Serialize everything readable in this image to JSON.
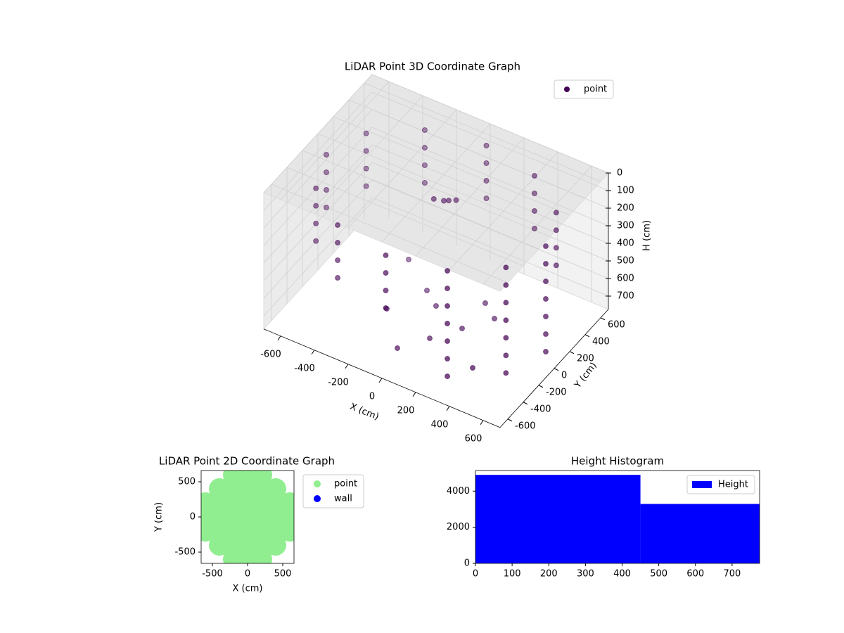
{
  "chart_data": [
    {
      "type": "scatter3d",
      "title": "LiDAR Point 3D Coordinate Graph",
      "xlabel": "X (cm)",
      "ylabel": "Y (cm)",
      "zlabel": "H (cm)",
      "xlim": [
        -700,
        700
      ],
      "ylim": [
        -700,
        700
      ],
      "zlim": [
        775,
        0
      ],
      "xticks": [
        -600,
        -400,
        -200,
        0,
        200,
        400,
        600
      ],
      "yticks": [
        -600,
        -400,
        -200,
        0,
        200,
        400,
        600
      ],
      "zticks": [
        0,
        100,
        200,
        300,
        400,
        500,
        600,
        700
      ],
      "grid": true,
      "legend": "upper right",
      "series": [
        {
          "name": "point",
          "color": "#440154",
          "x": [
            650,
            650,
            650,
            650,
            563,
            563,
            563,
            563,
            325,
            325,
            325,
            325,
            0,
            0,
            0,
            0,
            -325,
            -325,
            -325,
            -325,
            -563,
            -563,
            -563,
            -563,
            -650,
            -650,
            -650,
            -650,
            -563,
            -563,
            -563,
            -563,
            -325,
            -325,
            -325,
            -325,
            0,
            0,
            0,
            0,
            325,
            325,
            325,
            325,
            563,
            563,
            563,
            563,
            325,
            325,
            325,
            563,
            563,
            563,
            650,
            650,
            650,
            0,
            200,
            -100,
            300,
            100,
            -200,
            400,
            -300,
            200,
            0,
            0,
            50,
            -50,
            20
          ],
          "y": [
            0,
            0,
            0,
            0,
            325,
            325,
            325,
            325,
            563,
            563,
            563,
            563,
            650,
            650,
            650,
            650,
            563,
            563,
            563,
            563,
            325,
            325,
            325,
            325,
            0,
            0,
            0,
            0,
            -325,
            -325,
            -325,
            -325,
            -563,
            -563,
            -563,
            -563,
            -650,
            -650,
            -650,
            -650,
            -563,
            -563,
            -563,
            -563,
            -325,
            -325,
            -325,
            -325,
            -563,
            -563,
            -563,
            -325,
            -325,
            -325,
            0,
            0,
            0,
            0,
            -100,
            100,
            100,
            -300,
            -200,
            -400,
            300,
            200,
            -500,
            100,
            150,
            80,
            120
          ],
          "z": [
            100,
            200,
            300,
            400,
            100,
            200,
            300,
            400,
            100,
            200,
            300,
            400,
            100,
            200,
            300,
            400,
            100,
            200,
            300,
            400,
            100,
            200,
            300,
            400,
            100,
            200,
            300,
            400,
            100,
            200,
            300,
            400,
            100,
            200,
            300,
            400,
            100,
            200,
            300,
            400,
            100,
            200,
            300,
            400,
            100,
            200,
            300,
            400,
            500,
            600,
            700,
            500,
            600,
            700,
            500,
            600,
            700,
            700,
            700,
            700,
            700,
            700,
            700,
            700,
            700,
            700,
            700,
            150,
            150,
            150,
            150
          ]
        }
      ]
    },
    {
      "type": "scatter",
      "title": "LiDAR Point 2D Coordinate Graph",
      "xlabel": "X (cm)",
      "ylabel": "Y (cm)",
      "xlim": [
        -660,
        660
      ],
      "ylim": [
        -660,
        660
      ],
      "xticks": [
        -500,
        0,
        500
      ],
      "yticks": [
        -500,
        0,
        500
      ],
      "legend": "upper left outside",
      "series": [
        {
          "name": "point",
          "color": "#90ee90",
          "x": [
            -200,
            0,
            200,
            -400,
            -200,
            0,
            200,
            400,
            -600,
            -400,
            -200,
            0,
            200,
            400,
            600,
            -600,
            -400,
            -200,
            0,
            200,
            400,
            600,
            -600,
            -400,
            -200,
            0,
            200,
            400,
            600,
            -400,
            -200,
            0,
            200,
            400,
            -200,
            0,
            200
          ],
          "y": [
            600,
            600,
            600,
            400,
            400,
            400,
            400,
            400,
            200,
            200,
            200,
            200,
            200,
            200,
            200,
            0,
            0,
            0,
            0,
            0,
            0,
            0,
            -200,
            -200,
            -200,
            -200,
            -200,
            -200,
            -200,
            -400,
            -400,
            -400,
            -400,
            -400,
            -600,
            -600,
            -600
          ]
        },
        {
          "name": "wall",
          "color": "#0000ff",
          "x": [],
          "y": []
        }
      ]
    },
    {
      "type": "histogram",
      "title": "Height Histogram",
      "bins": [
        0,
        450,
        775
      ],
      "series": [
        {
          "name": "Height",
          "color": "#0000ff",
          "values": [
            4900,
            3290
          ]
        }
      ],
      "xlim": [
        0,
        775
      ],
      "ylim": [
        0,
        5140
      ],
      "xticks": [
        0,
        100,
        200,
        300,
        400,
        500,
        600,
        700
      ],
      "yticks": [
        0,
        2000,
        4000
      ],
      "legend": "upper right"
    }
  ]
}
